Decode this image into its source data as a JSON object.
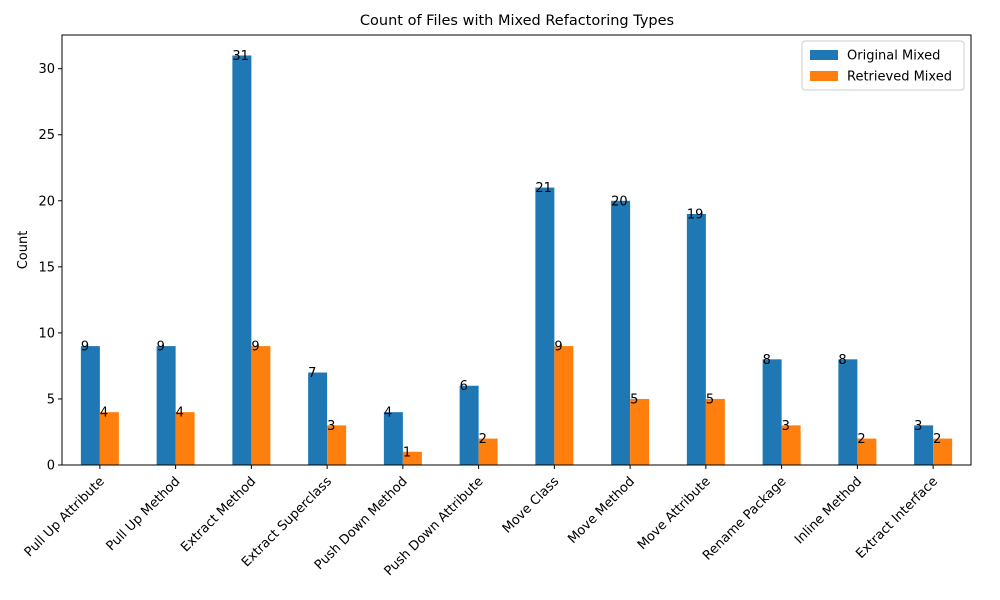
{
  "chart_data": {
    "type": "bar",
    "title": "Count of Files with Mixed Refactoring Types",
    "xlabel": "",
    "ylabel": "Count",
    "categories": [
      "Pull Up Attribute",
      "Pull Up Method",
      "Extract Method",
      "Extract Superclass",
      "Push Down Method",
      "Push Down Attribute",
      "Move Class",
      "Move Method",
      "Move Attribute",
      "Rename Package",
      "Inline Method",
      "Extract Interface"
    ],
    "series": [
      {
        "name": "Original Mixed",
        "color": "#1f77b4",
        "values": [
          9,
          9,
          31,
          7,
          4,
          6,
          21,
          20,
          19,
          8,
          8,
          3
        ]
      },
      {
        "name": "Retrieved Mixed",
        "color": "#ff7f0e",
        "values": [
          4,
          4,
          9,
          3,
          1,
          2,
          9,
          5,
          5,
          3,
          2,
          2
        ]
      }
    ],
    "ylim": [
      0,
      32.55
    ],
    "yticks": [
      0,
      5,
      10,
      15,
      20,
      25,
      30
    ],
    "grid": false,
    "legend": "top-right",
    "x_tick_rotation_deg": 45
  }
}
